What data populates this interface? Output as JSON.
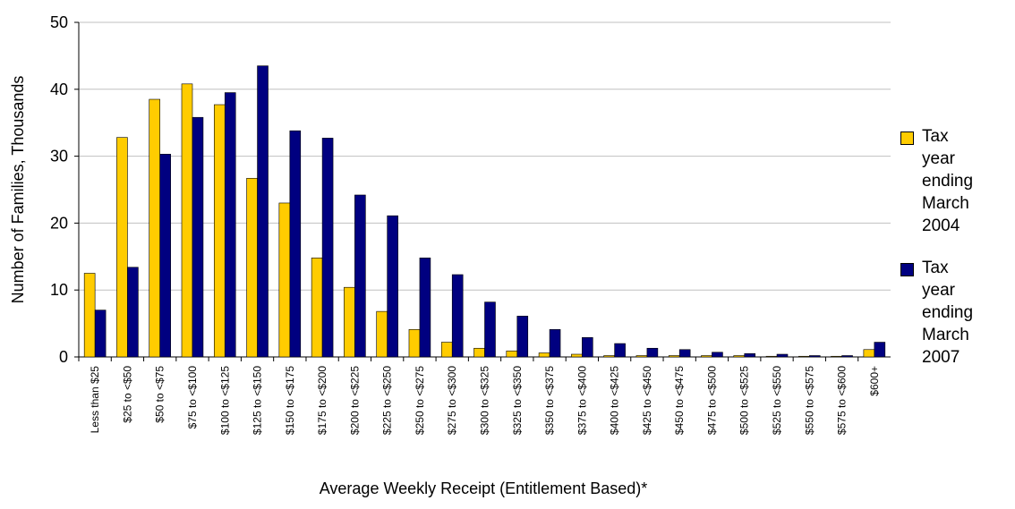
{
  "chart_data": {
    "type": "bar",
    "x_label": "Average Weekly Receipt (Entitlement Based)*",
    "y_label": "Number of Families, Thousands",
    "categories": [
      "Less than $25",
      "$25 to <$50",
      "$50 to <$75",
      "$75 to <$100",
      "$100 to <$125",
      "$125 to <$150",
      "$150 to <$175",
      "$175 to <$200",
      "$200 to <$225",
      "$225 to <$250",
      "$250 to <$275",
      "$275 to <$300",
      "$300 to <$325",
      "$325 to <$350",
      "$350 to <$375",
      "$375 to <$400",
      "$400 to <$425",
      "$425 to <$450",
      "$450 to <$475",
      "$475 to <$500",
      "$500 to <$525",
      "$525 to <$550",
      "$550 to <$575",
      "$575 to <$600",
      "$600+"
    ],
    "series": [
      {
        "name": "Tax year ending March 2004",
        "color": "#ffcc00",
        "values": [
          12.5,
          32.8,
          38.5,
          40.8,
          37.7,
          26.7,
          23.0,
          14.8,
          10.4,
          6.8,
          4.1,
          2.2,
          1.3,
          0.9,
          0.6,
          0.4,
          0.2,
          0.2,
          0.2,
          0.2,
          0.2,
          0.1,
          0.1,
          0.1,
          1.1
        ]
      },
      {
        "name": "Tax year ending March 2007",
        "color": "#000080",
        "values": [
          7.0,
          13.4,
          30.3,
          35.8,
          39.5,
          43.5,
          33.8,
          32.7,
          24.2,
          21.1,
          14.8,
          12.3,
          8.2,
          6.1,
          4.1,
          2.9,
          2.0,
          1.3,
          1.1,
          0.7,
          0.5,
          0.4,
          0.2,
          0.2,
          2.2
        ]
      }
    ],
    "ylim": [
      0,
      50
    ],
    "yticks": [
      0,
      10,
      20,
      30,
      40,
      50
    ],
    "grid": true
  }
}
